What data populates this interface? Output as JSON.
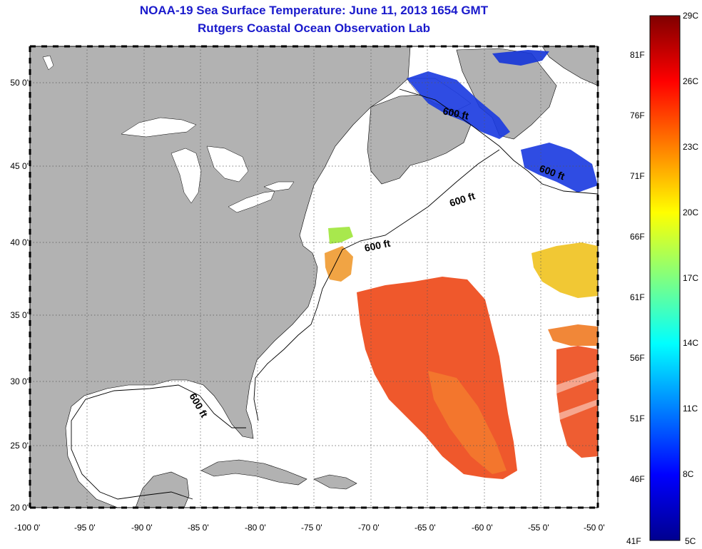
{
  "title": "NOAA-19 Sea Surface Temperature:  June 11, 2013 1654 GMT",
  "subtitle": "Rutgers Coastal Ocean Observation Lab",
  "map": {
    "lon_range": [
      -100,
      -50
    ],
    "lat_range": [
      20,
      52.5
    ],
    "lon_ticks": [
      "-100 0'",
      "-95 0'",
      "-90 0'",
      "-85 0'",
      "-80 0'",
      "-75 0'",
      "-70 0'",
      "-65 0'",
      "-60 0'",
      "-55 0'",
      "-50 0'"
    ],
    "lat_ticks": [
      "20 0'",
      "25 0'",
      "30 0'",
      "35 0'",
      "40 0'",
      "45 0'",
      "50 0'"
    ],
    "grid": "dotted",
    "land_color": "#b2b2b2",
    "ocean_color": "#ffffff",
    "isobath_labels": [
      "600 ft",
      "600 ft",
      "600 ft",
      "600 ft",
      "600 ft"
    ]
  },
  "colorbar": {
    "celsius_labels": [
      "29C",
      "26C",
      "23C",
      "20C",
      "17C",
      "14C",
      "11C",
      "8C",
      "5C"
    ],
    "fahrenheit_labels": [
      "81F",
      "76F",
      "71F",
      "66F",
      "61F",
      "56F",
      "51F",
      "46F",
      "41F"
    ],
    "colormap": "jet"
  }
}
